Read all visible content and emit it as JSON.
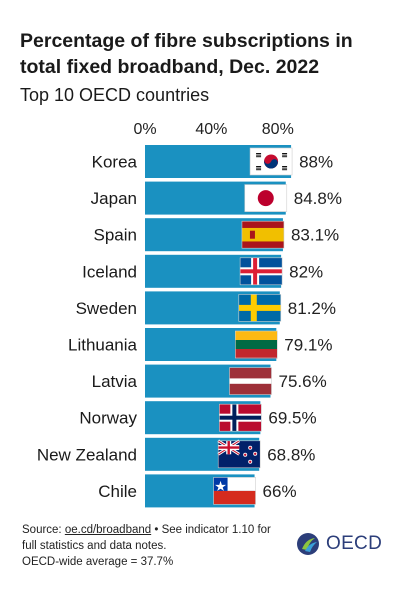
{
  "title": "Percentage of fibre subscriptions in total fixed broadband, Dec. 2022",
  "subtitle": "Top 10 OECD countries",
  "chart_data": {
    "type": "bar",
    "orientation": "horizontal",
    "categories": [
      "Korea",
      "Japan",
      "Spain",
      "Iceland",
      "Sweden",
      "Lithuania",
      "Latvia",
      "Norway",
      "New Zealand",
      "Chile"
    ],
    "values": [
      88,
      84.8,
      83.1,
      82,
      81.2,
      79.1,
      75.6,
      69.5,
      68.8,
      66
    ],
    "value_labels": [
      "88%",
      "84.8%",
      "83.1%",
      "82%",
      "81.2%",
      "79.1%",
      "75.6%",
      "69.5%",
      "68.8%",
      "66%"
    ],
    "xticks": [
      0,
      40,
      80
    ],
    "xtick_labels": [
      "0%",
      "40%",
      "80%"
    ],
    "xlim": [
      0,
      100
    ],
    "axis_position": "top",
    "bar_color": "#1a91c1",
    "flags": [
      "korea-flag",
      "japan-flag",
      "spain-flag",
      "iceland-flag",
      "sweden-flag",
      "lithuania-flag",
      "latvia-flag",
      "norway-flag",
      "new-zealand-flag",
      "chile-flag"
    ]
  },
  "footer": {
    "source_prefix": "Source: ",
    "source_link": "oe.cd/broadband",
    "source_suffix": " • See indicator 1.10 for full statistics and data notes.",
    "average_note": "OECD-wide average = 37.7%"
  },
  "logo": {
    "text": "OECD",
    "icon": "oecd-logo-icon"
  }
}
